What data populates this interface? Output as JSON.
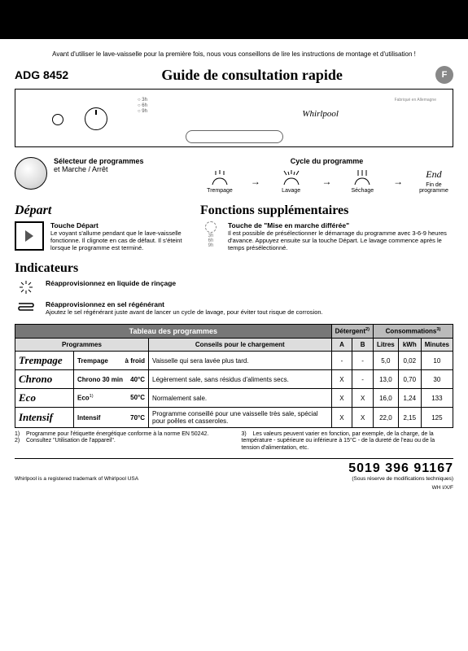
{
  "warning": "Avant d'utiliser le lave-vaisselle pour la première fois, nous vous conseillons de lire les instructions de montage et d'utilisation !",
  "model": "ADG 8452",
  "title": "Guide de consultation rapide",
  "lang": "F",
  "panel": {
    "brand": "Whirlpool",
    "made": "Fabriqué en Allemagne"
  },
  "selector": {
    "title": "Sélecteur de programmes",
    "sub": "et Marche / Arrêt"
  },
  "cycle": {
    "title": "Cycle du programme",
    "steps": [
      "Trempage",
      "Lavage",
      "Séchage"
    ],
    "end": "End",
    "end_sub": "Fin de programme"
  },
  "depart": {
    "heading": "Départ",
    "title": "Touche Départ",
    "desc": "Le voyant s'allume pendant que le lave-vaisselle fonctionne. Il clignote en cas de défaut. Il s'éteint lorsque le programme est terminé."
  },
  "fonctions": {
    "heading": "Fonctions supplémentaires",
    "delay_title": "Touche de \"Mise en marche différée\"",
    "delay_desc": "Il est possible de présélectionner le démarrage du programme avec 3-6-9 heures d'avance. Appuyez ensuite sur la touche Départ. Le lavage commence après le temps présélectionné.",
    "delay_hours": [
      "3h",
      "6h",
      "9h"
    ]
  },
  "indicators": {
    "heading": "Indicateurs",
    "rinse": "Réapprovisionnez en liquide de rinçage",
    "salt": "Réapprovisionnez en sel régénérant",
    "salt_desc": "Ajoutez le sel régénérant juste avant de lancer un cycle de lavage, pour éviter tout risque de corrosion."
  },
  "table": {
    "header": "Tableau des programmes",
    "detergent": "Détergent",
    "consum": "Consommations",
    "sup_det": "2)",
    "sup_cons": "3)",
    "col_prog": "Programmes",
    "col_conseils": "Conseils pour le chargement",
    "col_a": "A",
    "col_b": "B",
    "col_l": "Litres",
    "col_kwh": "kWh",
    "col_min": "Minutes",
    "rows": [
      {
        "name": "Trempage",
        "prog": "Trempage",
        "temp": "à froid",
        "conseils": "Vaisselle qui sera lavée plus tard.",
        "a": "-",
        "b": "-",
        "l": "5,0",
        "kwh": "0,02",
        "min": "10"
      },
      {
        "name": "Chrono",
        "prog": "Chrono 30 min",
        "temp": "40°C",
        "conseils": "Légèrement sale, sans résidus d'aliments secs.",
        "a": "X",
        "b": "-",
        "l": "13,0",
        "kwh": "0,70",
        "min": "30"
      },
      {
        "name": "Eco",
        "prog": "Eco",
        "sup": "1)",
        "temp": "50°C",
        "conseils": "Normalement sale.",
        "a": "X",
        "b": "X",
        "l": "16,0",
        "kwh": "1,24",
        "min": "133"
      },
      {
        "name": "Intensif",
        "prog": "Intensif",
        "temp": "70°C",
        "conseils": "Programme conseillé pour une vaisselle très sale, spécial pour poêles et casseroles.",
        "a": "X",
        "b": "X",
        "l": "22,0",
        "kwh": "2,15",
        "min": "125"
      }
    ]
  },
  "footnotes": {
    "n1": "Programme pour l'étiquette énergétique conforme à la norme EN 50242.",
    "n2": "Consultez \"Utilisation de l'appareil\".",
    "n3": "Les valeurs peuvent varier en fonction, par exemple, de la charge, de la température - supérieure ou inférieure à 15°C - de la dureté de l'eau ou de la tension d'alimentation, etc."
  },
  "footer": {
    "trademark": "Whirlpool is a registered trademark of Whirlpool USA",
    "code": "5019 396 91167",
    "reserve": "(Sous réserve de modifications techniques)",
    "pagecode": "WH I/X/F"
  },
  "colors": {
    "header_bg": "#777777",
    "subheader_bg": "#bbbbbb",
    "colh_bg": "#dddddd"
  }
}
